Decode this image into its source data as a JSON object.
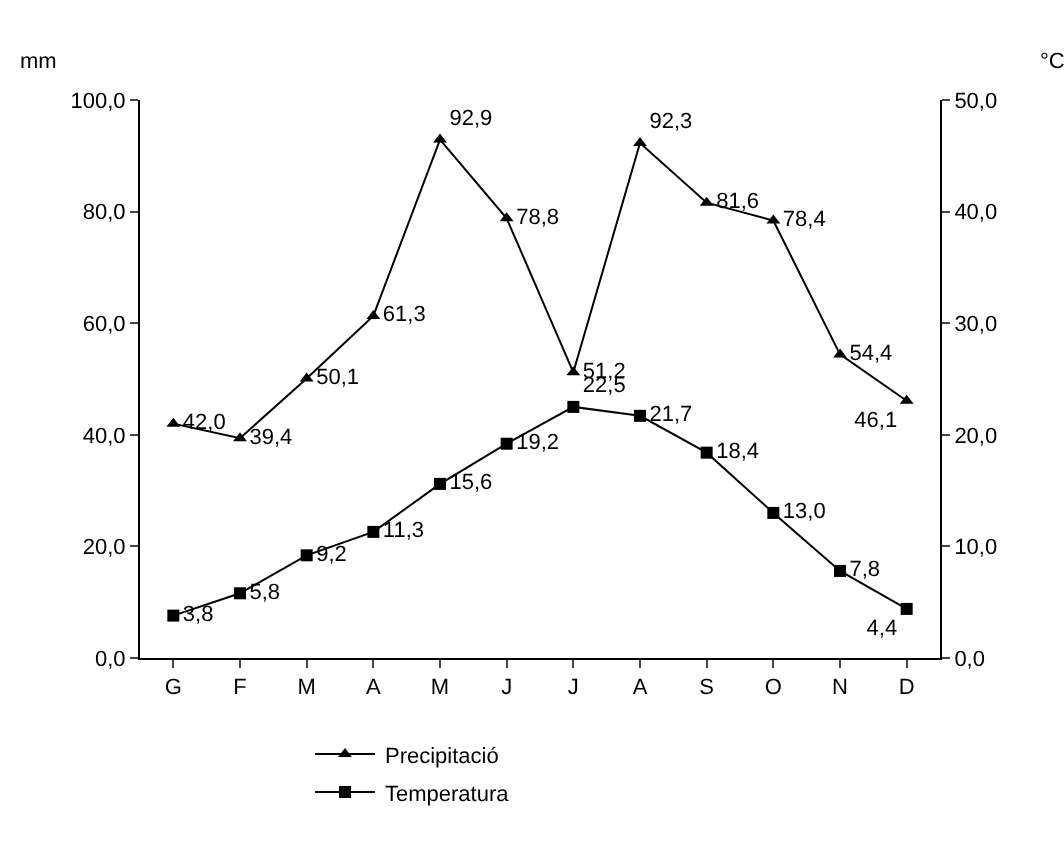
{
  "chart_data": {
    "type": "line",
    "categories": [
      "G",
      "F",
      "M",
      "A",
      "M",
      "J",
      "J",
      "A",
      "S",
      "O",
      "N",
      "D"
    ],
    "ylabel": "mm",
    "y2label": "°C",
    "ylim": [
      0,
      100
    ],
    "yticks": [
      {
        "value": 0,
        "label": "0,0"
      },
      {
        "value": 20,
        "label": "20,0"
      },
      {
        "value": 40,
        "label": "40,0"
      },
      {
        "value": 60,
        "label": "60,0"
      },
      {
        "value": 80,
        "label": "80,0"
      },
      {
        "value": 100,
        "label": "100,0"
      }
    ],
    "y2lim": [
      0,
      50
    ],
    "y2ticks": [
      {
        "value": 0,
        "label": "0,0"
      },
      {
        "value": 10,
        "label": "10,0"
      },
      {
        "value": 20,
        "label": "20,0"
      },
      {
        "value": 30,
        "label": "30,0"
      },
      {
        "value": 40,
        "label": "40,0"
      },
      {
        "value": 50,
        "label": "50,0"
      }
    ],
    "grid": false,
    "legend": "bottom",
    "series": [
      {
        "name": "Precipitació",
        "color": "#000000",
        "marker": "triangle",
        "values": [
          42.0,
          39.4,
          50.1,
          61.3,
          92.9,
          78.8,
          51.2,
          92.3,
          81.6,
          78.4,
          54.4,
          46.1
        ],
        "value_labels": [
          "42,0",
          "39,4",
          "50,1",
          "61,3",
          "92,9",
          "78,8",
          "51,2",
          "92,3",
          "81,6",
          "78,4",
          "54,4",
          "46,1"
        ]
      },
      {
        "name": "Temperatura",
        "color": "#000000",
        "marker": "square",
        "axis": "y2",
        "values": [
          3.8,
          5.8,
          9.2,
          11.3,
          15.6,
          19.2,
          22.5,
          21.7,
          18.4,
          13.0,
          7.8,
          4.4
        ],
        "value_labels": [
          "3,8",
          "5,8",
          "9,2",
          "11,3",
          "15,6",
          "19,2",
          "22,5",
          "21,7",
          "18,4",
          "13,0",
          "7,8",
          "4,4"
        ]
      }
    ]
  }
}
